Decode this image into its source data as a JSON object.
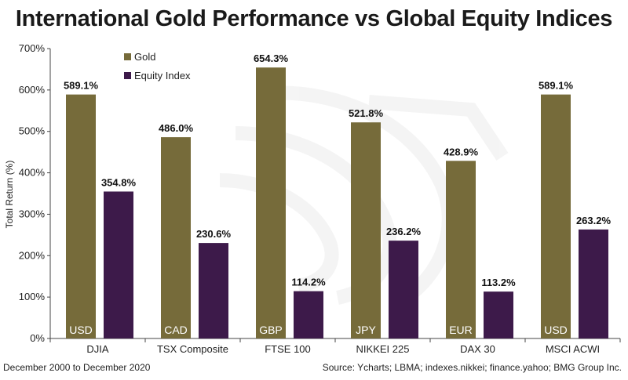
{
  "chart_data": {
    "type": "bar",
    "title": "International Gold Performance vs Global Equity Indices",
    "ylabel": "Total Return (%)",
    "ylim": [
      0,
      700
    ],
    "y_ticks": [
      "0%",
      "100%",
      "200%",
      "300%",
      "400%",
      "500%",
      "600%",
      "700%"
    ],
    "y_tick_values": [
      0,
      100,
      200,
      300,
      400,
      500,
      600,
      700
    ],
    "categories": [
      "DJIA",
      "TSX Composite",
      "FTSE 100",
      "NIKKEI 225",
      "DAX 30",
      "MSCI ACWI"
    ],
    "currencies": [
      "USD",
      "CAD",
      "GBP",
      "JPY",
      "EUR",
      "USD"
    ],
    "series": [
      {
        "name": "Gold",
        "color": "#766b3a",
        "values": [
          589.1,
          486.0,
          654.3,
          521.8,
          428.9,
          589.1
        ],
        "labels": [
          "589.1%",
          "486.0%",
          "654.3%",
          "521.8%",
          "428.9%",
          "589.1%"
        ]
      },
      {
        "name": "Equity Index",
        "color": "#3d1a4a",
        "values": [
          354.8,
          230.6,
          114.2,
          236.2,
          113.2,
          263.2
        ],
        "labels": [
          "354.8%",
          "230.6%",
          "114.2%",
          "236.2%",
          "113.2%",
          "263.2%"
        ]
      }
    ],
    "legend_position": "top-left",
    "grid": false
  },
  "footer": {
    "period": "December 2000 to December 2020",
    "source": "Source: Ycharts; LBMA; indexes.nikkei; finance.yahoo; BMG Group Inc."
  }
}
